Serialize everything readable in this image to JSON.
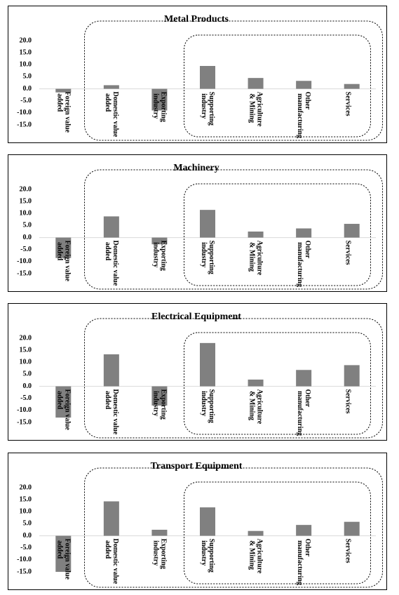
{
  "chart_data": [
    {
      "type": "bar",
      "title": "Metal Products",
      "categories": [
        "Foreign value added",
        "Domestic value added",
        "Exporting industry",
        "Supporting industry",
        "Agriculture & Mining",
        "Other manufacturing",
        "Services"
      ],
      "values": [
        -1.5,
        1.5,
        -9,
        9.5,
        4.5,
        3.3,
        2
      ],
      "color": "#808080",
      "ylim": [
        -15,
        20
      ],
      "yticks": [
        {
          "value": 20,
          "label": "20.0"
        },
        {
          "value": 15,
          "label": "15.0"
        },
        {
          "value": 10,
          "label": "10.0"
        },
        {
          "value": 5,
          "label": "5.0"
        },
        {
          "value": 0,
          "label": "0.0"
        },
        {
          "value": -5,
          "label": "-5.0"
        },
        {
          "value": -10,
          "label": "-10.0"
        },
        {
          "value": -15,
          "label": "-15.0"
        }
      ]
    },
    {
      "type": "bar",
      "title": "Machinery",
      "categories": [
        "Foreign value added",
        "Domestic value added",
        "Exporting industry",
        "Supporting industry",
        "Agriculture & Mining",
        "Other manufacturing",
        "Services"
      ],
      "values": [
        -8.5,
        8.8,
        -2.8,
        11.5,
        2.5,
        3.8,
        5.7
      ],
      "color": "#808080",
      "ylim": [
        -15,
        20
      ],
      "yticks": [
        {
          "value": 20,
          "label": "20.0"
        },
        {
          "value": 15,
          "label": "15.0"
        },
        {
          "value": 10,
          "label": "10.0"
        },
        {
          "value": 5,
          "label": "5.0"
        },
        {
          "value": 0,
          "label": "0.0"
        },
        {
          "value": -5,
          "label": "-5.0"
        },
        {
          "value": -10,
          "label": "-10.0"
        },
        {
          "value": -15,
          "label": "-15.0"
        }
      ]
    },
    {
      "type": "bar",
      "title": "Electrical Equipment",
      "categories": [
        "Foreign value added",
        "Domestic value added",
        "Exporting industry",
        "Supporting industry",
        "Agriculture & Mining",
        "Other manufacturing",
        "Services"
      ],
      "values": [
        -13,
        13.3,
        -8,
        18,
        2.8,
        6.8,
        8.8
      ],
      "color": "#808080",
      "ylim": [
        -15,
        20
      ],
      "yticks": [
        {
          "value": 20,
          "label": "20.0"
        },
        {
          "value": 15,
          "label": "15.0"
        },
        {
          "value": 10,
          "label": "10.0"
        },
        {
          "value": 5,
          "label": "5.0"
        },
        {
          "value": 0,
          "label": "0.0"
        },
        {
          "value": -5,
          "label": "-5.0"
        },
        {
          "value": -10,
          "label": "-10.0"
        },
        {
          "value": -15,
          "label": "-15.0"
        }
      ]
    },
    {
      "type": "bar",
      "title": "Transport Equipment",
      "categories": [
        "Foreign value added",
        "Domestic value added",
        "Exporting industry",
        "Supporting industry",
        "Agriculture & Mining",
        "Other manufacturing",
        "Services"
      ],
      "values": [
        -15,
        14.3,
        2.5,
        11.8,
        2,
        4.5,
        5.8
      ],
      "color": "#808080",
      "ylim": [
        -15,
        20
      ],
      "yticks": [
        {
          "value": 20,
          "label": "20.0"
        },
        {
          "value": 15,
          "label": "15.0"
        },
        {
          "value": 10,
          "label": "10.0"
        },
        {
          "value": 5,
          "label": "5.0"
        },
        {
          "value": 0,
          "label": "0.0"
        },
        {
          "value": -5,
          "label": "-5.0"
        },
        {
          "value": -10,
          "label": "-10.0"
        },
        {
          "value": -15,
          "label": "-15.0"
        }
      ]
    }
  ]
}
